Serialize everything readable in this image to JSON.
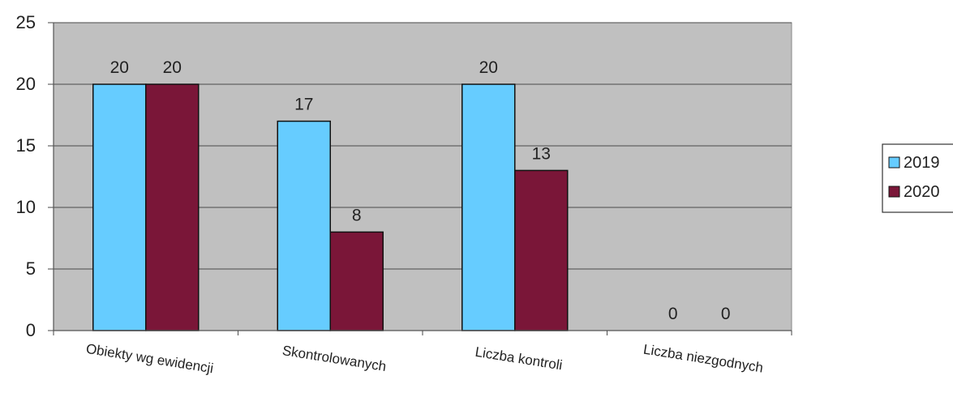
{
  "chart_data": {
    "type": "bar",
    "categories": [
      "Obiekty wg ewidencji",
      "Skontrolowanych",
      "Liczba kontroli",
      "Liczba niezgodnych"
    ],
    "series": [
      {
        "name": "2019",
        "values": [
          20,
          17,
          20,
          0
        ],
        "color": "#66ccff"
      },
      {
        "name": "2020",
        "values": [
          20,
          8,
          13,
          0
        ],
        "color": "#7a1638"
      }
    ],
    "ylim": [
      0,
      25
    ],
    "yticks": [
      0,
      5,
      10,
      15,
      20,
      25
    ],
    "grid": true,
    "legend": "right",
    "plot_background": "#c0c0c0",
    "title": "",
    "xlabel": "",
    "ylabel": ""
  }
}
